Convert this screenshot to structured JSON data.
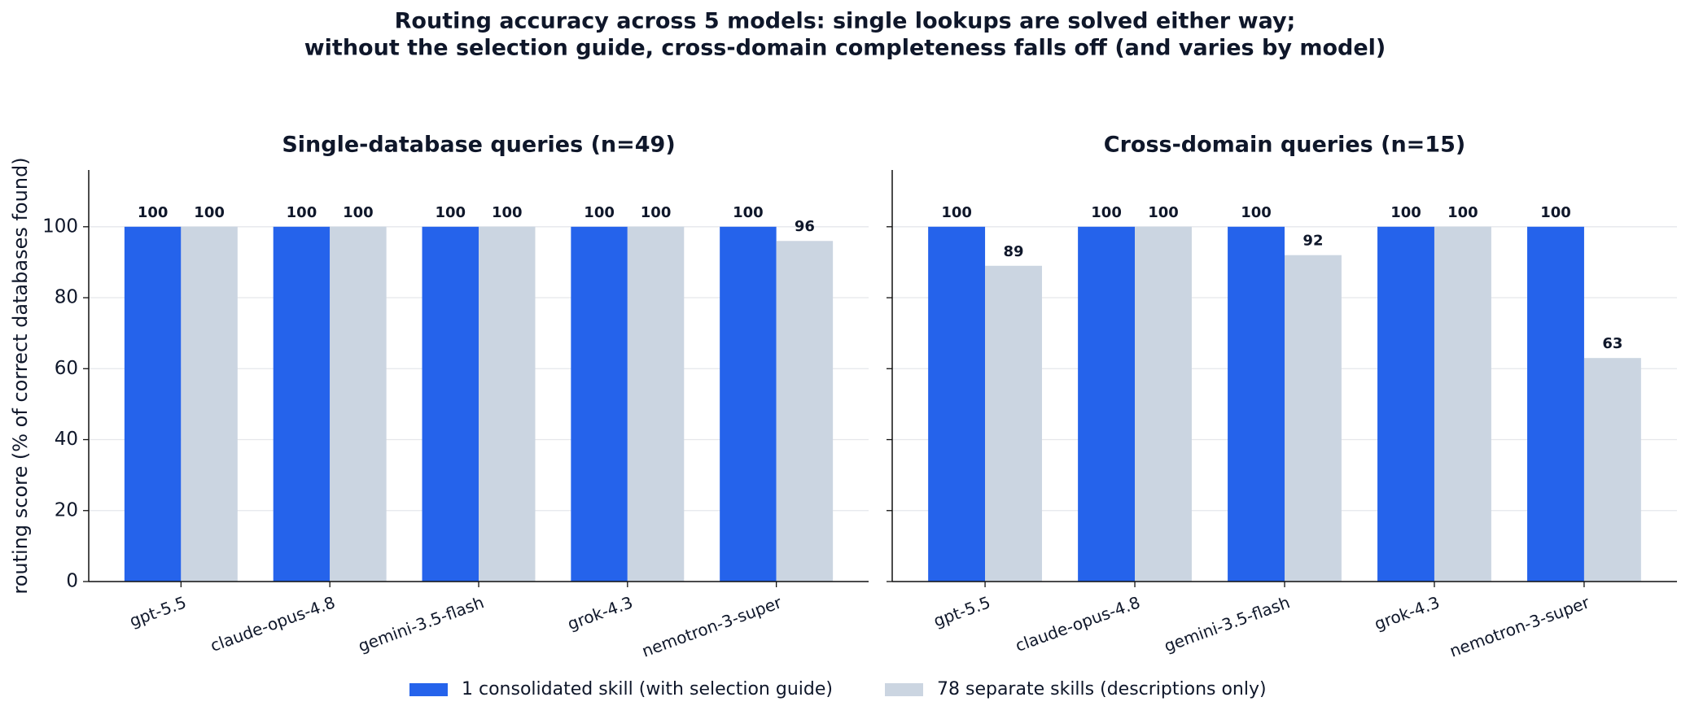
{
  "title": [
    "Routing accuracy across 5 models: single lookups are solved either way;",
    "without the selection guide, cross-domain completeness falls off (and varies by model)"
  ],
  "chart_data": [
    {
      "type": "bar",
      "title": "Single-database queries (n=49)",
      "ylabel": "routing score (% of correct databases found)",
      "categories": [
        "gpt-5.5",
        "claude-opus-4.8",
        "gemini-3.5-flash",
        "grok-4.3",
        "nemotron-3-super"
      ],
      "series": [
        {
          "name": "1 consolidated skill (with selection guide)",
          "color": "#2563eb",
          "values": [
            100,
            100,
            100,
            100,
            100
          ]
        },
        {
          "name": "78 separate skills (descriptions only)",
          "color": "#cbd5e1",
          "values": [
            100,
            100,
            100,
            100,
            96
          ]
        }
      ],
      "ylim": [
        0,
        116
      ],
      "yticks": [
        0,
        20,
        40,
        60,
        80,
        100
      ],
      "grid": true,
      "show_ytick_labels": true
    },
    {
      "type": "bar",
      "title": "Cross-domain queries (n=15)",
      "categories": [
        "gpt-5.5",
        "claude-opus-4.8",
        "gemini-3.5-flash",
        "grok-4.3",
        "nemotron-3-super"
      ],
      "series": [
        {
          "name": "1 consolidated skill (with selection guide)",
          "color": "#2563eb",
          "values": [
            100,
            100,
            100,
            100,
            100
          ]
        },
        {
          "name": "78 separate skills (descriptions only)",
          "color": "#cbd5e1",
          "values": [
            89,
            100,
            92,
            100,
            63
          ]
        }
      ],
      "ylim": [
        0,
        116
      ],
      "yticks": [
        0,
        20,
        40,
        60,
        80,
        100
      ],
      "grid": true,
      "show_ytick_labels": false
    }
  ]
}
